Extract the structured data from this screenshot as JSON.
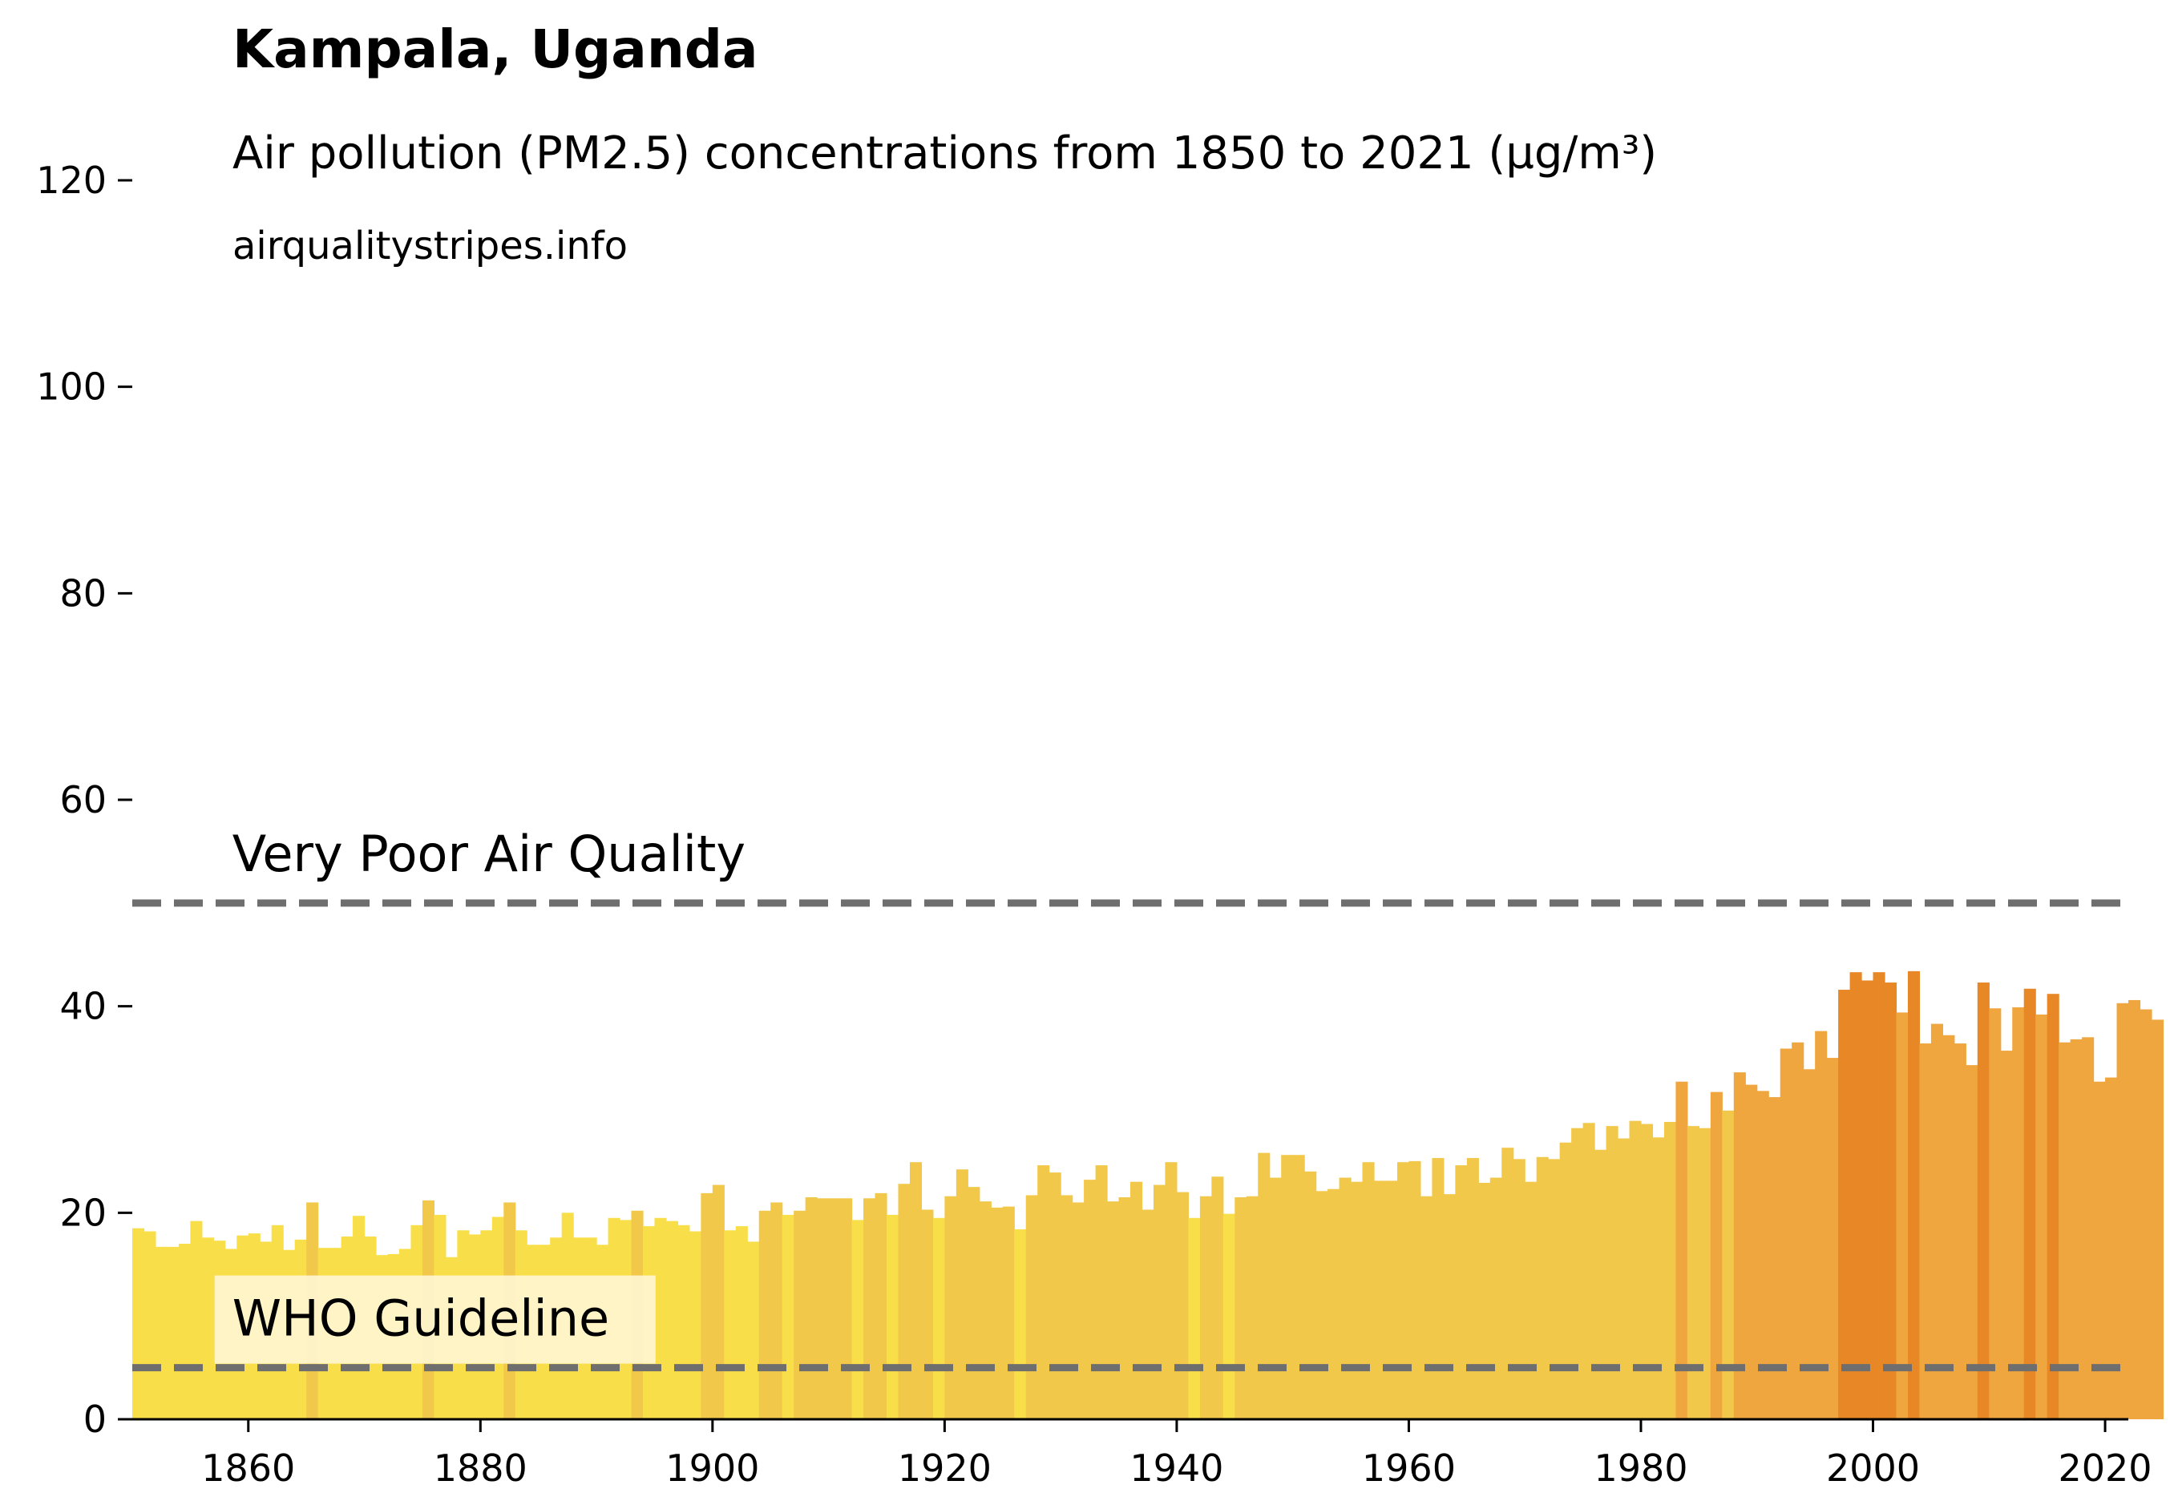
{
  "chart_data": {
    "type": "bar",
    "title": "Kampala, Uganda",
    "subtitle": "Air pollution (PM2.5) concentrations from 1850 to 2021 (µg/m³)",
    "source": "airqualitystripes.info",
    "xlabel": "",
    "ylabel": "",
    "xlim": [
      1850,
      2022
    ],
    "ylim": [
      0,
      120
    ],
    "x_ticks": [
      1860,
      1880,
      1900,
      1920,
      1940,
      1960,
      1980,
      2000,
      2020
    ],
    "y_ticks": [
      0,
      20,
      40,
      60,
      80,
      100,
      120
    ],
    "grid": false,
    "legend": "none",
    "reference_lines": [
      {
        "label": "Very Poor Air Quality",
        "value": 50,
        "color": "#6e6e6e",
        "style": "dashed"
      },
      {
        "label": "WHO Guideline",
        "value": 5,
        "color": "#6e6e6e",
        "style": "dashed"
      }
    ],
    "color_scale": [
      {
        "max": 20,
        "color": "#f8df4a"
      },
      {
        "max": 30,
        "color": "#f2c84b"
      },
      {
        "max": 41,
        "color": "#f0a63e"
      },
      {
        "max": 200,
        "color": "#e88725"
      }
    ],
    "start_year": 1850,
    "values": [
      18.5,
      18.2,
      16.7,
      16.7,
      17.0,
      19.2,
      17.6,
      17.3,
      16.5,
      17.8,
      18.0,
      17.2,
      18.8,
      16.4,
      17.4,
      21.0,
      16.6,
      16.6,
      17.7,
      19.7,
      17.7,
      15.9,
      16.0,
      16.5,
      18.8,
      21.2,
      19.8,
      15.7,
      18.3,
      17.9,
      18.3,
      19.6,
      21.0,
      18.3,
      16.9,
      16.9,
      17.6,
      20.0,
      17.6,
      17.6,
      16.9,
      19.5,
      19.3,
      20.2,
      18.7,
      19.5,
      19.2,
      18.8,
      18.2,
      21.9,
      22.7,
      18.3,
      18.7,
      17.2,
      20.2,
      21.0,
      19.8,
      20.2,
      21.5,
      21.4,
      21.4,
      21.4,
      19.3,
      21.4,
      21.9,
      19.8,
      22.8,
      24.9,
      20.3,
      19.5,
      21.6,
      24.2,
      22.5,
      21.1,
      20.5,
      20.6,
      18.4,
      21.7,
      24.6,
      23.9,
      21.7,
      21.0,
      23.2,
      24.6,
      21.1,
      21.5,
      23.0,
      20.3,
      22.7,
      24.9,
      22.0,
      19.5,
      21.6,
      23.5,
      19.9,
      21.5,
      21.6,
      25.8,
      23.4,
      25.6,
      25.6,
      24.0,
      22.1,
      22.3,
      23.4,
      23.0,
      24.9,
      23.1,
      23.1,
      24.9,
      25.0,
      21.6,
      25.3,
      21.8,
      24.6,
      25.3,
      22.9,
      23.4,
      26.3,
      25.2,
      23.0,
      25.4,
      25.2,
      26.8,
      28.2,
      28.7,
      26.1,
      28.4,
      27.2,
      28.9,
      28.6,
      27.3,
      28.8,
      32.7,
      28.4,
      28.2,
      31.7,
      29.9,
      33.6,
      32.4,
      31.8,
      31.2,
      35.9,
      36.5,
      33.9,
      37.6,
      35.0,
      41.6,
      43.3,
      42.5,
      43.3,
      42.3,
      39.4,
      43.4,
      36.4,
      38.3,
      37.2,
      36.4,
      34.3,
      42.3,
      39.8,
      35.7,
      39.9,
      41.7,
      39.2,
      41.2,
      36.5,
      36.8,
      37.0,
      32.7,
      33.1,
      40.3,
      40.6,
      39.7,
      38.7
    ]
  }
}
